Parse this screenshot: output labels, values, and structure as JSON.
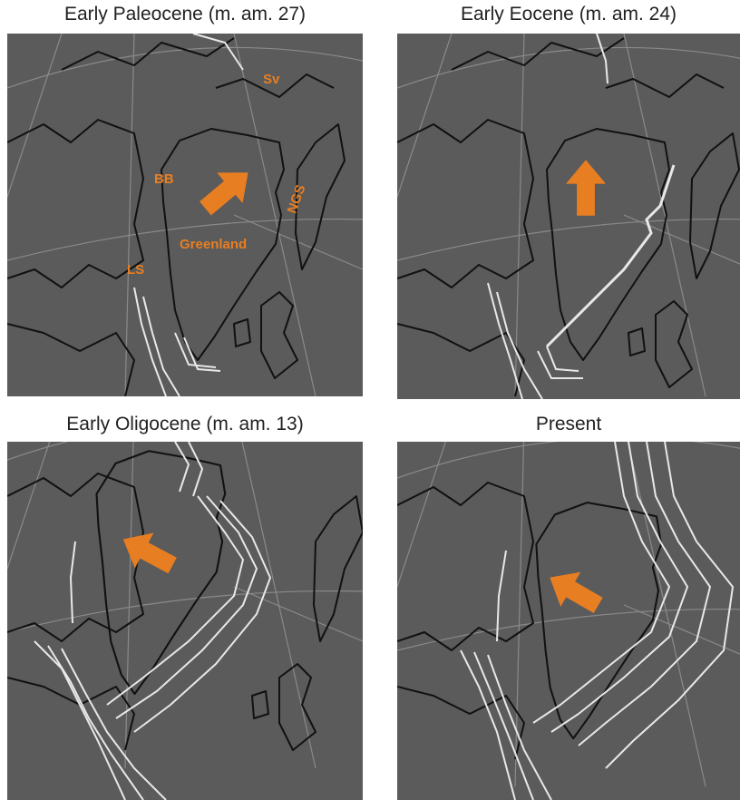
{
  "panels": [
    {
      "title": "Early Paleocene (m. am. 27)",
      "labels": [
        "Sv",
        "BB",
        "Greenland",
        "NGS",
        "LS"
      ]
    },
    {
      "title": "Early Eocene (m. am. 24)"
    },
    {
      "title": "Early Oligocene (m. am. 13)"
    },
    {
      "title": "Present"
    }
  ]
}
